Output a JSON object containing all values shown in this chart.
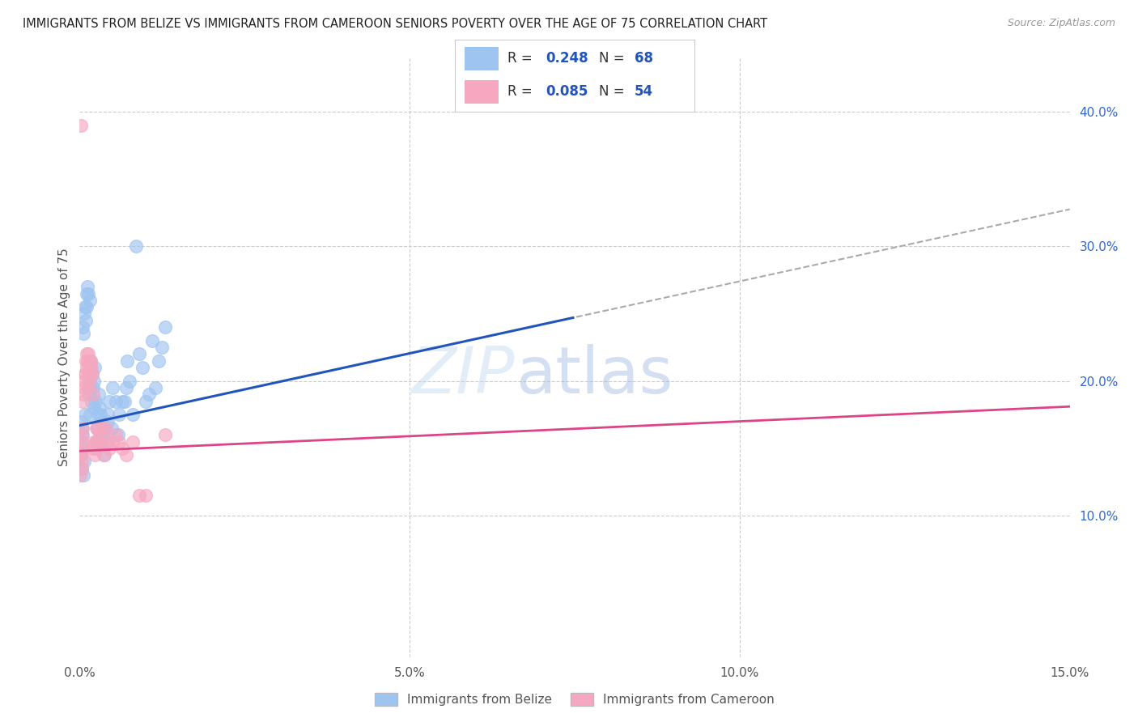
{
  "title": "IMMIGRANTS FROM BELIZE VS IMMIGRANTS FROM CAMEROON SENIORS POVERTY OVER THE AGE OF 75 CORRELATION CHART",
  "source": "Source: ZipAtlas.com",
  "ylabel": "Seniors Poverty Over the Age of 75",
  "xlim": [
    0.0,
    0.15
  ],
  "ylim": [
    -0.005,
    0.44
  ],
  "xticks": [
    0.0,
    0.05,
    0.1,
    0.15
  ],
  "xticklabels": [
    "0.0%",
    "5.0%",
    "10.0%",
    "15.0%"
  ],
  "yticks_right": [
    0.1,
    0.2,
    0.3,
    0.4
  ],
  "yticklabels_right": [
    "10.0%",
    "20.0%",
    "30.0%",
    "40.0%"
  ],
  "belize_color": "#9ec4f0",
  "cameroon_color": "#f5a8c0",
  "belize_R": 0.248,
  "belize_N": 68,
  "cameroon_R": 0.085,
  "cameroon_N": 54,
  "trend_belize_color": "#2255bb",
  "trend_cameroon_color": "#dd4488",
  "trend_dashed_color": "#aaaaaa",
  "watermark_zip": "ZIP",
  "watermark_atlas": "atlas",
  "background_color": "#ffffff",
  "grid_color": "#cccccc",
  "belize_x": [
    0.0002,
    0.0004,
    0.0006,
    0.0002,
    0.0003,
    0.0005,
    0.0007,
    0.0003,
    0.0002,
    0.0008,
    0.001,
    0.0008,
    0.0012,
    0.0015,
    0.0009,
    0.0007,
    0.0005,
    0.0011,
    0.0013,
    0.0006,
    0.0018,
    0.002,
    0.0016,
    0.0022,
    0.0019,
    0.0014,
    0.0017,
    0.0021,
    0.0015,
    0.0023,
    0.0025,
    0.0028,
    0.0024,
    0.0026,
    0.003,
    0.0032,
    0.0027,
    0.0029,
    0.0031,
    0.0035,
    0.004,
    0.0038,
    0.0042,
    0.0045,
    0.0036,
    0.0033,
    0.0048,
    0.0043,
    0.005,
    0.0055,
    0.006,
    0.0065,
    0.0058,
    0.007,
    0.0075,
    0.0068,
    0.008,
    0.0072,
    0.009,
    0.0085,
    0.01,
    0.011,
    0.0095,
    0.0105,
    0.012,
    0.0115,
    0.013,
    0.0125
  ],
  "belize_y": [
    0.155,
    0.16,
    0.13,
    0.145,
    0.165,
    0.15,
    0.14,
    0.135,
    0.17,
    0.175,
    0.265,
    0.255,
    0.27,
    0.26,
    0.245,
    0.25,
    0.24,
    0.255,
    0.265,
    0.235,
    0.185,
    0.195,
    0.175,
    0.2,
    0.205,
    0.19,
    0.215,
    0.18,
    0.195,
    0.21,
    0.155,
    0.175,
    0.185,
    0.165,
    0.18,
    0.17,
    0.155,
    0.19,
    0.175,
    0.16,
    0.155,
    0.165,
    0.175,
    0.185,
    0.145,
    0.155,
    0.165,
    0.17,
    0.195,
    0.185,
    0.175,
    0.185,
    0.16,
    0.195,
    0.2,
    0.185,
    0.175,
    0.215,
    0.22,
    0.3,
    0.185,
    0.23,
    0.21,
    0.19,
    0.215,
    0.195,
    0.24,
    0.225
  ],
  "cameroon_x": [
    0.0002,
    0.0003,
    0.0002,
    0.0004,
    0.0003,
    0.0001,
    0.0005,
    0.0004,
    0.0003,
    0.0002,
    0.0008,
    0.0006,
    0.0009,
    0.0007,
    0.001,
    0.0008,
    0.0005,
    0.0011,
    0.0012,
    0.0006,
    0.0015,
    0.0013,
    0.0016,
    0.0018,
    0.0014,
    0.0017,
    0.0012,
    0.002,
    0.0019,
    0.0016,
    0.0022,
    0.0025,
    0.0024,
    0.002,
    0.0023,
    0.0028,
    0.0026,
    0.003,
    0.0025,
    0.0032,
    0.0035,
    0.004,
    0.0038,
    0.0042,
    0.0045,
    0.005,
    0.0055,
    0.006,
    0.0065,
    0.007,
    0.008,
    0.009,
    0.01,
    0.013
  ],
  "cameroon_y": [
    0.39,
    0.16,
    0.145,
    0.155,
    0.14,
    0.13,
    0.165,
    0.15,
    0.135,
    0.145,
    0.205,
    0.195,
    0.215,
    0.2,
    0.21,
    0.205,
    0.185,
    0.22,
    0.215,
    0.19,
    0.21,
    0.22,
    0.215,
    0.21,
    0.205,
    0.215,
    0.195,
    0.19,
    0.205,
    0.2,
    0.155,
    0.165,
    0.155,
    0.15,
    0.145,
    0.165,
    0.155,
    0.16,
    0.15,
    0.155,
    0.165,
    0.165,
    0.145,
    0.155,
    0.15,
    0.155,
    0.16,
    0.155,
    0.15,
    0.145,
    0.155,
    0.115,
    0.115,
    0.16
  ],
  "trend_belize_start_x": 0.0,
  "trend_belize_solid_end_x": 0.075,
  "trend_belize_end_x": 0.15,
  "trend_cameroon_start_x": 0.0,
  "trend_cameroon_end_x": 0.15
}
